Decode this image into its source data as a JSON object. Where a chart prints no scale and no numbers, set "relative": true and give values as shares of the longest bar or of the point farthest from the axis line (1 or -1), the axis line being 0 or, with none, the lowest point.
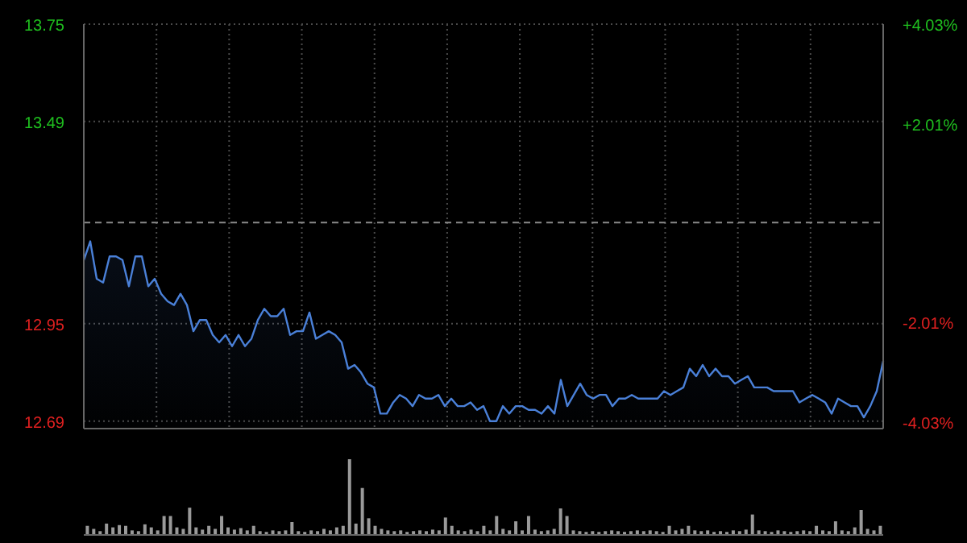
{
  "chart_data": [
    {
      "type": "area",
      "categories": [
        null,
        null,
        null,
        null,
        null,
        null,
        null,
        null,
        null,
        null,
        null,
        null,
        null,
        null,
        null,
        null,
        null,
        null,
        null,
        null,
        null,
        null,
        null,
        null,
        null,
        null,
        null,
        null,
        null,
        null,
        null,
        null,
        null,
        null,
        null,
        null,
        null,
        null,
        null,
        null,
        null,
        null,
        null,
        null,
        null,
        null,
        null,
        null,
        null,
        null,
        null,
        null,
        null,
        null,
        null,
        null,
        null,
        null,
        null,
        null,
        null,
        null,
        null,
        null,
        null,
        null,
        null,
        null,
        null,
        null,
        null,
        null,
        null,
        null,
        null,
        null,
        null,
        null,
        null,
        null,
        null,
        null,
        null,
        null,
        null,
        null,
        null,
        null,
        null,
        null,
        null,
        null,
        null,
        null,
        null,
        null,
        null,
        null,
        null,
        null,
        null,
        null,
        null,
        null,
        null,
        null,
        null,
        null,
        null,
        null,
        null,
        null,
        null,
        null,
        null,
        null,
        null,
        null,
        null,
        null,
        null,
        null,
        null,
        null,
        null
      ],
      "values": [
        13.12,
        13.17,
        13.07,
        13.06,
        13.13,
        13.13,
        13.12,
        13.05,
        13.13,
        13.13,
        13.05,
        13.07,
        13.03,
        13.01,
        13.0,
        13.03,
        13.0,
        12.93,
        12.96,
        12.96,
        12.92,
        12.9,
        12.92,
        12.89,
        12.92,
        12.89,
        12.91,
        12.96,
        12.99,
        12.97,
        12.97,
        12.99,
        12.92,
        12.93,
        12.93,
        12.98,
        12.91,
        12.92,
        12.93,
        12.92,
        12.9,
        12.83,
        12.84,
        12.82,
        12.79,
        12.78,
        12.71,
        12.71,
        12.74,
        12.76,
        12.75,
        12.73,
        12.76,
        12.75,
        12.75,
        12.76,
        12.73,
        12.75,
        12.73,
        12.73,
        12.74,
        12.72,
        12.73,
        12.69,
        12.69,
        12.73,
        12.71,
        12.73,
        12.73,
        12.72,
        12.72,
        12.71,
        12.73,
        12.71,
        12.8,
        12.73,
        12.76,
        12.79,
        12.76,
        12.75,
        12.76,
        12.76,
        12.73,
        12.75,
        12.75,
        12.76,
        12.75,
        12.75,
        12.75,
        12.75,
        12.77,
        12.76,
        12.77,
        12.78,
        12.83,
        12.81,
        12.84,
        12.81,
        12.83,
        12.81,
        12.81,
        12.79,
        12.8,
        12.81,
        12.78,
        12.78,
        12.78,
        12.77,
        12.77,
        12.77,
        12.77,
        12.74,
        12.75,
        12.76,
        12.75,
        12.74,
        12.71,
        12.75,
        12.74,
        12.73,
        12.73,
        12.7,
        12.73,
        12.77,
        12.85
      ],
      "color": "#4a80d8",
      "ylim": [
        12.67,
        13.75
      ],
      "yticks": [
        12.69,
        12.95,
        13.49,
        13.75
      ],
      "y2lim": [
        -4.16,
        4.03
      ],
      "y2ticks": [
        {
          "value": -4.03,
          "label": "-4.03%"
        },
        {
          "value": -2.01,
          "label": "-2.01%"
        },
        {
          "value": 2.01,
          "label": "+2.01%"
        },
        {
          "value": 4.03,
          "label": "+4.03%"
        }
      ],
      "ref_lines": [
        {
          "axis": "y",
          "value": 13.22,
          "color": "#8a8a8a",
          "line_style": "dashed"
        }
      ],
      "grid": true,
      "tick_labels": "y"
    },
    {
      "type": "bar",
      "relative": true,
      "tick_labels": false,
      "color": "#9a9a9a",
      "categories": [
        null,
        null,
        null,
        null,
        null,
        null,
        null,
        null,
        null,
        null,
        null,
        null,
        null,
        null,
        null,
        null,
        null,
        null,
        null,
        null,
        null,
        null,
        null,
        null,
        null,
        null,
        null,
        null,
        null,
        null,
        null,
        null,
        null,
        null,
        null,
        null,
        null,
        null,
        null,
        null,
        null,
        null,
        null,
        null,
        null,
        null,
        null,
        null,
        null,
        null,
        null,
        null,
        null,
        null,
        null,
        null,
        null,
        null,
        null,
        null,
        null,
        null,
        null,
        null,
        null,
        null,
        null,
        null,
        null,
        null,
        null,
        null,
        null,
        null,
        null,
        null,
        null,
        null,
        null,
        null,
        null,
        null,
        null,
        null,
        null,
        null,
        null,
        null,
        null,
        null,
        null,
        null,
        null,
        null,
        null,
        null,
        null,
        null,
        null,
        null,
        null,
        null,
        null,
        null,
        null,
        null,
        null,
        null,
        null,
        null,
        null,
        null,
        null,
        null,
        null,
        null,
        null,
        null,
        null,
        null,
        null,
        null,
        null,
        null,
        null
      ],
      "values": [
        0.12,
        0.08,
        0.05,
        0.15,
        0.1,
        0.13,
        0.12,
        0.06,
        0.05,
        0.14,
        0.1,
        0.06,
        0.25,
        0.25,
        0.1,
        0.08,
        0.36,
        0.1,
        0.07,
        0.12,
        0.08,
        0.25,
        0.1,
        0.07,
        0.09,
        0.06,
        0.12,
        0.05,
        0.04,
        0.06,
        0.05,
        0.06,
        0.17,
        0.05,
        0.04,
        0.06,
        0.05,
        0.08,
        0.06,
        0.1,
        0.12,
        1.0,
        0.15,
        0.62,
        0.22,
        0.12,
        0.08,
        0.06,
        0.05,
        0.06,
        0.04,
        0.05,
        0.06,
        0.05,
        0.07,
        0.06,
        0.23,
        0.12,
        0.06,
        0.05,
        0.07,
        0.05,
        0.12,
        0.06,
        0.25,
        0.08,
        0.06,
        0.18,
        0.06,
        0.25,
        0.07,
        0.05,
        0.06,
        0.08,
        0.35,
        0.25,
        0.06,
        0.05,
        0.04,
        0.05,
        0.04,
        0.05,
        0.06,
        0.05,
        0.04,
        0.05,
        0.06,
        0.05,
        0.06,
        0.05,
        0.04,
        0.12,
        0.06,
        0.08,
        0.12,
        0.06,
        0.05,
        0.06,
        0.04,
        0.05,
        0.04,
        0.06,
        0.05,
        0.07,
        0.27,
        0.06,
        0.05,
        0.04,
        0.06,
        0.05,
        0.04,
        0.05,
        0.06,
        0.05,
        0.12,
        0.06,
        0.05,
        0.18,
        0.06,
        0.05,
        0.1,
        0.33,
        0.08,
        0.06,
        0.12
      ]
    }
  ]
}
